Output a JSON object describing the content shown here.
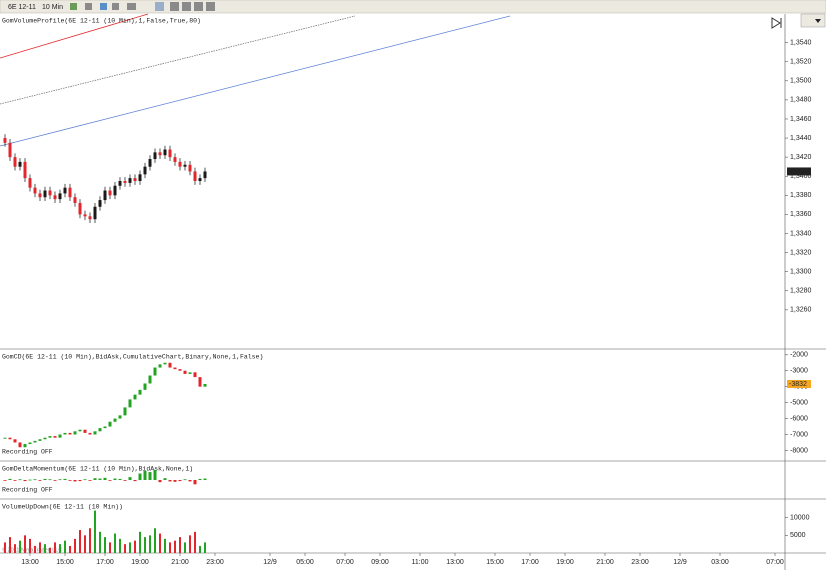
{
  "toolbar": {
    "instrument": "6E 12-11",
    "interval": "10 Min"
  },
  "copyright": "© 2011 NinjaTrader, LLC",
  "chart_data": [
    {
      "type": "candlestick",
      "title": "GomVolumeProfile(6E 12-11 (10 Min),1,False,True,80)",
      "open": [
        1.344,
        1.3435,
        1.342,
        1.341,
        1.3415,
        1.3398,
        1.3388,
        1.3382,
        1.3378,
        1.3385,
        1.338,
        1.3376,
        1.3382,
        1.3388,
        1.3378,
        1.3372,
        1.336,
        1.3358,
        1.3355,
        1.3368,
        1.3375,
        1.3385,
        1.338,
        1.339,
        1.3395,
        1.3393,
        1.3398,
        1.3395,
        1.3402,
        1.341,
        1.3418,
        1.3425,
        1.3422,
        1.3428,
        1.342,
        1.3415,
        1.341,
        1.3412,
        1.3405,
        1.3395,
        1.3398
      ],
      "high": [
        1.3444,
        1.3439,
        1.3424,
        1.3419,
        1.3419,
        1.3402,
        1.3392,
        1.3386,
        1.3389,
        1.3389,
        1.3384,
        1.3386,
        1.3392,
        1.3392,
        1.3382,
        1.3376,
        1.3364,
        1.3362,
        1.3372,
        1.3379,
        1.3389,
        1.3389,
        1.3394,
        1.3399,
        1.3399,
        1.3402,
        1.3402,
        1.3406,
        1.3414,
        1.3422,
        1.3429,
        1.3429,
        1.3432,
        1.3432,
        1.3424,
        1.3419,
        1.3416,
        1.3416,
        1.3409,
        1.3402,
        1.3409
      ],
      "low": [
        1.3431,
        1.3416,
        1.3406,
        1.3406,
        1.3394,
        1.3384,
        1.3378,
        1.3374,
        1.3374,
        1.3376,
        1.3372,
        1.3372,
        1.3378,
        1.3374,
        1.3368,
        1.3356,
        1.3354,
        1.3351,
        1.3351,
        1.3364,
        1.3371,
        1.3376,
        1.3376,
        1.3386,
        1.3389,
        1.3389,
        1.3391,
        1.3391,
        1.3398,
        1.3406,
        1.3414,
        1.3418,
        1.3418,
        1.3416,
        1.3411,
        1.3406,
        1.3406,
        1.3401,
        1.3391,
        1.3391,
        1.3394
      ],
      "close": [
        1.3435,
        1.342,
        1.341,
        1.3415,
        1.3398,
        1.3388,
        1.3382,
        1.3378,
        1.3385,
        1.338,
        1.3376,
        1.3382,
        1.3388,
        1.3378,
        1.3372,
        1.336,
        1.3358,
        1.3355,
        1.3368,
        1.3375,
        1.3385,
        1.338,
        1.339,
        1.3395,
        1.3393,
        1.3398,
        1.3395,
        1.3402,
        1.341,
        1.3418,
        1.3425,
        1.3422,
        1.3428,
        1.342,
        1.3415,
        1.341,
        1.3412,
        1.3405,
        1.3395,
        1.3398,
        1.3405
      ],
      "up_color": "#1a1a1a",
      "down_color": "#e3262b",
      "xlim": [
        -1,
        156
      ],
      "ylim": [
        1.322,
        1.357
      ],
      "yticks": [
        {
          "value": 1.354,
          "label": "1,3540"
        },
        {
          "value": 1.352,
          "label": "1,3520"
        },
        {
          "value": 1.35,
          "label": "1,3500"
        },
        {
          "value": 1.348,
          "label": "1,3480"
        },
        {
          "value": 1.346,
          "label": "1,3460"
        },
        {
          "value": 1.344,
          "label": "1,3440"
        },
        {
          "value": 1.342,
          "label": "1,3420"
        },
        {
          "value": 1.34,
          "label": "1,3400"
        },
        {
          "value": 1.338,
          "label": "1,3380"
        },
        {
          "value": 1.336,
          "label": "1,3360"
        },
        {
          "value": 1.334,
          "label": "1,3340"
        },
        {
          "value": 1.332,
          "label": "1,3320"
        },
        {
          "value": 1.33,
          "label": "1,3300"
        },
        {
          "value": 1.328,
          "label": "1,3280"
        },
        {
          "value": 1.326,
          "label": "1,3260"
        }
      ],
      "last_price": {
        "value": 1.3405,
        "label": "1,3405"
      }
    },
    {
      "type": "cumulative",
      "title": "GomCD(6E 12-11 (10 Min),BidAsk,CumulativeChart,Binary,None,1,False)",
      "status": "Recording OFF",
      "values": [
        -7200,
        -7300,
        -7500,
        -7800,
        -7600,
        -7500,
        -7400,
        -7300,
        -7200,
        -7100,
        -7200,
        -7000,
        -6900,
        -7000,
        -6800,
        -6700,
        -6900,
        -7000,
        -6800,
        -6600,
        -6500,
        -6200,
        -6000,
        -5800,
        -5300,
        -4800,
        -4500,
        -4200,
        -3800,
        -3300,
        -2800,
        -2600,
        -2500,
        -2800,
        -2900,
        -3000,
        -3200,
        -3100,
        -3400,
        -4000,
        -3832
      ],
      "up_color": "#22a322",
      "down_color": "#e3262b",
      "marker_color": "#f5a623",
      "xlim": [
        -1,
        156
      ],
      "ylim": [
        -8600,
        -1700
      ],
      "yticks": [
        -2000,
        -3000,
        -4000,
        -5000,
        -6000,
        -7000,
        -8000
      ]
    },
    {
      "type": "momentum",
      "title": "GomDeltaMomentum(6E 12-11 (10 Min),BidAsk,None,1)",
      "status": "Recording OFF",
      "values": [
        -2,
        3,
        -1,
        2,
        -3,
        1,
        2,
        -2,
        3,
        2,
        -1,
        2,
        3,
        -2,
        -4,
        -3,
        2,
        -1,
        5,
        4,
        6,
        -2,
        4,
        3,
        -2,
        8,
        -3,
        18,
        25,
        22,
        28,
        -6,
        5,
        -4,
        -5,
        -3,
        2,
        -4,
        -12,
        3,
        4
      ],
      "up_color": "#22a322",
      "down_color": "#e3262b",
      "xlim": [
        -1,
        156
      ],
      "ylim": [
        -50,
        50
      ]
    },
    {
      "type": "volume",
      "title": "VolumeUpDown(6E 12-11 (10 Min))",
      "values": [
        3000,
        4500,
        2500,
        3500,
        5000,
        4000,
        2000,
        3000,
        2500,
        1500,
        3000,
        2500,
        3500,
        2000,
        4000,
        6500,
        5000,
        7000,
        12000,
        6000,
        4500,
        3000,
        5500,
        4000,
        2500,
        3000,
        3500,
        6000,
        4500,
        5000,
        7000,
        5500,
        4000,
        3000,
        3500,
        4500,
        3000,
        5000,
        6000,
        2000,
        3000
      ],
      "up_color": "#22a322",
      "down_color": "#e3262b",
      "xlim": [
        -1,
        156
      ],
      "ylim": [
        0,
        15000
      ],
      "yticks": [
        10000,
        5000
      ],
      "xticks": [
        {
          "value": 5,
          "label": "13:00"
        },
        {
          "value": 12,
          "label": "15:00"
        },
        {
          "value": 20,
          "label": "17:00"
        },
        {
          "value": 27,
          "label": "19:00"
        },
        {
          "value": 35,
          "label": "21:00"
        },
        {
          "value": 42,
          "label": "23:00"
        },
        {
          "value": 53,
          "label": "12/9"
        },
        {
          "value": 60,
          "label": "05:00"
        },
        {
          "value": 68,
          "label": "07:00"
        },
        {
          "value": 75,
          "label": "09:00"
        },
        {
          "value": 83,
          "label": "11:00"
        },
        {
          "value": 90,
          "label": "13:00"
        },
        {
          "value": 98,
          "label": "15:00"
        },
        {
          "value": 105,
          "label": "17:00"
        },
        {
          "value": 112,
          "label": "19:00"
        },
        {
          "value": 120,
          "label": "21:00"
        },
        {
          "value": 127,
          "label": "23:00"
        },
        {
          "value": 135,
          "label": "12/9"
        },
        {
          "value": 143,
          "label": "03:00"
        },
        {
          "value": 154,
          "label": "07:00"
        }
      ]
    }
  ]
}
